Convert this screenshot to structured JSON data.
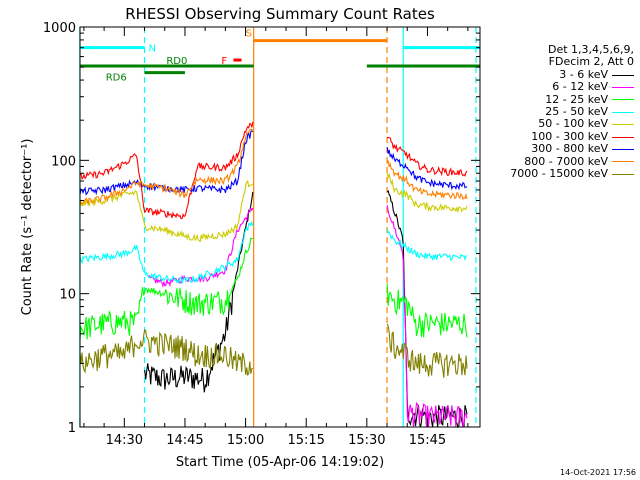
{
  "chart_data": {
    "type": "line",
    "title": "RHESSI Observing Summary Count Rates",
    "xlabel": "Start Time (05-Apr-06 14:19:02)",
    "ylabel": "Count Rate (s⁻¹ detector⁻¹)",
    "yscale": "log",
    "ylim": [
      1,
      1000
    ],
    "xlim": [
      "14:19:02",
      "15:58:00"
    ],
    "x_ticks": [
      "14:30",
      "14:45",
      "15:00",
      "15:15",
      "15:30",
      "15:45"
    ],
    "y_ticks": [
      "1",
      "10",
      "100",
      "1000"
    ],
    "grid": false,
    "legend": {
      "position": "right",
      "header": [
        "Det 1,3,4,5,6,9,",
        "FDecim 2, Att 0"
      ]
    },
    "series": [
      {
        "name": "3 - 6 keV",
        "color": "#000000",
        "x": [
          "14:19",
          "14:30",
          "14:35",
          "14:40",
          "14:45",
          "14:50",
          "14:55",
          "14:59",
          "15:02",
          "15:35",
          "15:37",
          "15:39",
          "15:40",
          "15:45",
          "15:50",
          "15:55"
        ],
        "y": [
          null,
          null,
          2.5,
          2.3,
          2.4,
          2.3,
          5,
          22,
          60,
          60,
          40,
          25,
          1.3,
          1.2,
          1.2,
          1.2
        ]
      },
      {
        "name": "6 - 12 keV",
        "color": "#ff00ff",
        "x": [
          "14:19",
          "14:35",
          "14:36",
          "14:40",
          "14:45",
          "14:50",
          "14:55",
          "14:58",
          "15:02",
          "15:35",
          "15:37",
          "15:39",
          "15:40",
          "15:45",
          "15:50",
          "15:55"
        ],
        "y": [
          null,
          null,
          13,
          12,
          13,
          13,
          15,
          30,
          45,
          45,
          30,
          20,
          1.3,
          1.2,
          1.2,
          1.2
        ]
      },
      {
        "name": "12 - 25 keV",
        "color": "#00ff00",
        "x": [
          "14:19",
          "14:25",
          "14:30",
          "14:33",
          "14:35",
          "14:40",
          "14:45",
          "14:48",
          "14:55",
          "14:58",
          "15:00",
          "15:02",
          "15:35",
          "15:37",
          "15:40",
          "15:42",
          "15:45",
          "15:50",
          "15:55"
        ],
        "y": [
          5.5,
          6,
          6.2,
          6,
          11,
          10,
          9,
          8.5,
          9,
          13,
          20,
          28,
          10,
          9,
          8.5,
          6,
          6,
          6,
          6
        ]
      },
      {
        "name": "25 - 50 keV",
        "color": "#00ffff",
        "x": [
          "14:19",
          "14:25",
          "14:30",
          "14:33",
          "14:35",
          "14:40",
          "14:45",
          "14:48",
          "14:55",
          "14:58",
          "15:00",
          "15:02",
          "15:35",
          "15:37",
          "15:40",
          "15:42",
          "15:45",
          "15:50",
          "15:55"
        ],
        "y": [
          18,
          19,
          20,
          22,
          14,
          13,
          12.5,
          13,
          16,
          18,
          30,
          35,
          30,
          25,
          22,
          20,
          19,
          19,
          18.5
        ]
      },
      {
        "name": "50 - 100 keV",
        "color": "#cccc00",
        "x": [
          "14:19",
          "14:25",
          "14:30",
          "14:33",
          "14:35",
          "14:40",
          "14:45",
          "14:48",
          "14:55",
          "14:58",
          "15:00",
          "15:02",
          "15:35",
          "15:37",
          "15:40",
          "15:42",
          "15:45",
          "15:50",
          "15:55"
        ],
        "y": [
          47,
          50,
          55,
          58,
          32,
          30,
          27,
          26,
          28,
          32,
          65,
          70,
          80,
          60,
          55,
          47,
          45,
          44,
          44
        ]
      },
      {
        "name": "100 - 300 keV",
        "color": "#ff0000",
        "x": [
          "14:19",
          "14:25",
          "14:30",
          "14:33",
          "14:35",
          "14:40",
          "14:45",
          "14:48",
          "14:55",
          "14:58",
          "15:00",
          "15:02",
          "15:35",
          "15:37",
          "15:40",
          "15:42",
          "15:45",
          "15:50",
          "15:55"
        ],
        "y": [
          75,
          80,
          95,
          110,
          42,
          40,
          38,
          90,
          88,
          110,
          170,
          190,
          150,
          125,
          110,
          95,
          85,
          82,
          80
        ]
      },
      {
        "name": "300 - 800 keV",
        "color": "#0000ff",
        "x": [
          "14:19",
          "14:25",
          "14:30",
          "14:33",
          "14:35",
          "14:40",
          "14:45",
          "14:48",
          "14:55",
          "14:58",
          "15:00",
          "15:02",
          "15:35",
          "15:37",
          "15:40",
          "15:42",
          "15:45",
          "15:50",
          "15:55"
        ],
        "y": [
          58,
          60,
          65,
          68,
          65,
          62,
          60,
          62,
          60,
          70,
          140,
          170,
          120,
          100,
          90,
          75,
          68,
          65,
          64
        ]
      },
      {
        "name": "800 - 7000 keV",
        "color": "#ff8000",
        "x": [
          "14:19",
          "14:25",
          "14:30",
          "14:33",
          "14:35",
          "14:40",
          "14:45",
          "14:48",
          "14:55",
          "14:58",
          "15:00",
          "15:02",
          "15:35",
          "15:37",
          "15:40",
          "15:42",
          "15:45",
          "15:50",
          "15:55"
        ],
        "y": [
          48,
          52,
          60,
          68,
          65,
          62,
          55,
          72,
          70,
          90,
          150,
          170,
          100,
          80,
          70,
          60,
          56,
          55,
          54
        ]
      },
      {
        "name": "7000 - 15000 keV",
        "color": "#808000",
        "x": [
          "14:19",
          "14:25",
          "14:30",
          "14:33",
          "14:35",
          "14:40",
          "14:45",
          "14:48",
          "14:55",
          "14:58",
          "15:00",
          "15:02",
          "15:35",
          "15:37",
          "15:40",
          "15:42",
          "15:45",
          "15:50",
          "15:55"
        ],
        "y": [
          3,
          3.5,
          3.5,
          4.5,
          4.5,
          4.2,
          4,
          3.5,
          3.5,
          3,
          3,
          3,
          5,
          4,
          3.5,
          3,
          3,
          3,
          3
        ]
      }
    ],
    "annotations": [
      {
        "label": "N",
        "color": "#00ffff",
        "segments": [
          [
            "14:19",
            "14:35"
          ],
          [
            "15:39",
            "15:58"
          ]
        ],
        "y": 700
      },
      {
        "label": "RD0",
        "color": "#008000",
        "segments": [
          [
            "14:19",
            "15:02"
          ],
          [
            "15:30",
            "15:58"
          ]
        ],
        "y": 510
      },
      {
        "label": "RD6",
        "color": "#008000",
        "segments": [
          [
            "14:35",
            "14:45"
          ]
        ],
        "y": 455
      },
      {
        "label": "F",
        "color": "#ff0000",
        "segments": [
          [
            "14:57",
            "14:59"
          ]
        ],
        "y": 565
      },
      {
        "label": "S",
        "color": "#ff8000",
        "segments": [
          [
            "15:02",
            "15:35"
          ]
        ],
        "y": 790
      }
    ],
    "vertical_markers": [
      {
        "x": "14:19",
        "color": "#00ffff",
        "style": "solid"
      },
      {
        "x": "14:35",
        "color": "#00ffff",
        "style": "dashed"
      },
      {
        "x": "15:02",
        "color": "#ff8000",
        "style": "solid"
      },
      {
        "x": "15:35",
        "color": "#ff8000",
        "style": "dashed"
      },
      {
        "x": "15:39",
        "color": "#00ffff",
        "style": "solid"
      },
      {
        "x": "15:57",
        "color": "#00ffff",
        "style": "dashed"
      }
    ]
  },
  "footer": {
    "timestamp": "14-Oct-2021 17:56"
  }
}
